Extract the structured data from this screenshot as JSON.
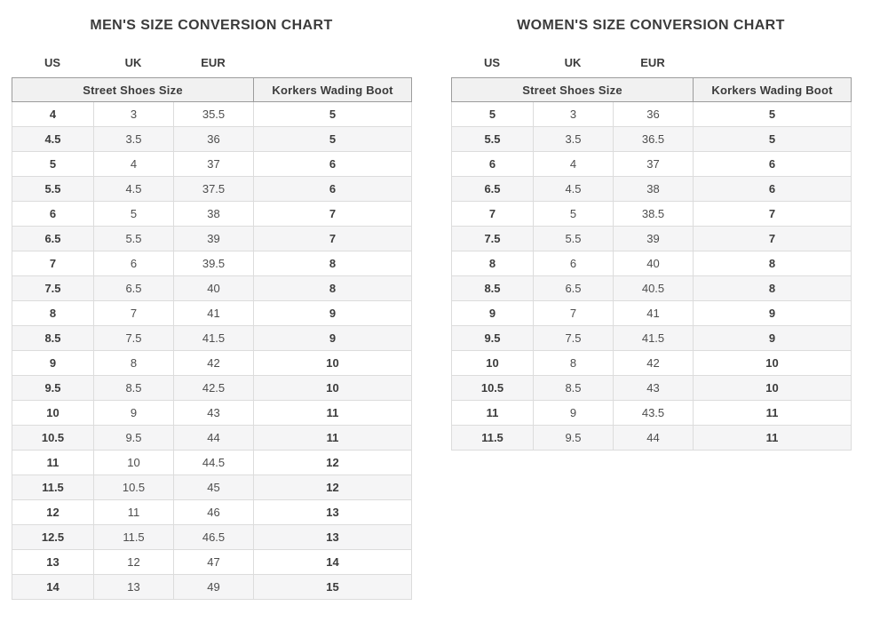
{
  "chart_data": [
    {
      "type": "table",
      "title": "MEN'S SIZE CONVERSION CHART",
      "column_labels": [
        "US",
        "UK",
        "EUR"
      ],
      "group_headers": [
        "Street Shoes Size",
        "Korkers Wading Boot"
      ],
      "columns": [
        "US",
        "UK",
        "EUR",
        "Korkers Wading Boot"
      ],
      "rows": [
        [
          "4",
          "3",
          "35.5",
          "5"
        ],
        [
          "4.5",
          "3.5",
          "36",
          "5"
        ],
        [
          "5",
          "4",
          "37",
          "6"
        ],
        [
          "5.5",
          "4.5",
          "37.5",
          "6"
        ],
        [
          "6",
          "5",
          "38",
          "7"
        ],
        [
          "6.5",
          "5.5",
          "39",
          "7"
        ],
        [
          "7",
          "6",
          "39.5",
          "8"
        ],
        [
          "7.5",
          "6.5",
          "40",
          "8"
        ],
        [
          "8",
          "7",
          "41",
          "9"
        ],
        [
          "8.5",
          "7.5",
          "41.5",
          "9"
        ],
        [
          "9",
          "8",
          "42",
          "10"
        ],
        [
          "9.5",
          "8.5",
          "42.5",
          "10"
        ],
        [
          "10",
          "9",
          "43",
          "11"
        ],
        [
          "10.5",
          "9.5",
          "44",
          "11"
        ],
        [
          "11",
          "10",
          "44.5",
          "12"
        ],
        [
          "11.5",
          "10.5",
          "45",
          "12"
        ],
        [
          "12",
          "11",
          "46",
          "13"
        ],
        [
          "12.5",
          "11.5",
          "46.5",
          "13"
        ],
        [
          "13",
          "12",
          "47",
          "14"
        ],
        [
          "14",
          "13",
          "49",
          "15"
        ]
      ]
    },
    {
      "type": "table",
      "title": "WOMEN'S SIZE CONVERSION CHART",
      "column_labels": [
        "US",
        "UK",
        "EUR"
      ],
      "group_headers": [
        "Street Shoes Size",
        "Korkers Wading Boot"
      ],
      "columns": [
        "US",
        "UK",
        "EUR",
        "Korkers Wading Boot"
      ],
      "rows": [
        [
          "5",
          "3",
          "36",
          "5"
        ],
        [
          "5.5",
          "3.5",
          "36.5",
          "5"
        ],
        [
          "6",
          "4",
          "37",
          "6"
        ],
        [
          "6.5",
          "4.5",
          "38",
          "6"
        ],
        [
          "7",
          "5",
          "38.5",
          "7"
        ],
        [
          "7.5",
          "5.5",
          "39",
          "7"
        ],
        [
          "8",
          "6",
          "40",
          "8"
        ],
        [
          "8.5",
          "6.5",
          "40.5",
          "8"
        ],
        [
          "9",
          "7",
          "41",
          "9"
        ],
        [
          "9.5",
          "7.5",
          "41.5",
          "9"
        ],
        [
          "10",
          "8",
          "42",
          "10"
        ],
        [
          "10.5",
          "8.5",
          "43",
          "10"
        ],
        [
          "11",
          "9",
          "43.5",
          "11"
        ],
        [
          "11.5",
          "9.5",
          "44",
          "11"
        ]
      ]
    }
  ],
  "colors": {
    "title_text": "#3b3b3b",
    "bold_cell_text": "#3b3b3b",
    "regular_cell_text": "#4d4d4d",
    "header_bg": "#f1f1f1",
    "zebra_row_bg": "#f5f5f6",
    "header_border": "#9c9c9c",
    "body_border": "#dcdcdc",
    "page_bg": "#ffffff"
  }
}
